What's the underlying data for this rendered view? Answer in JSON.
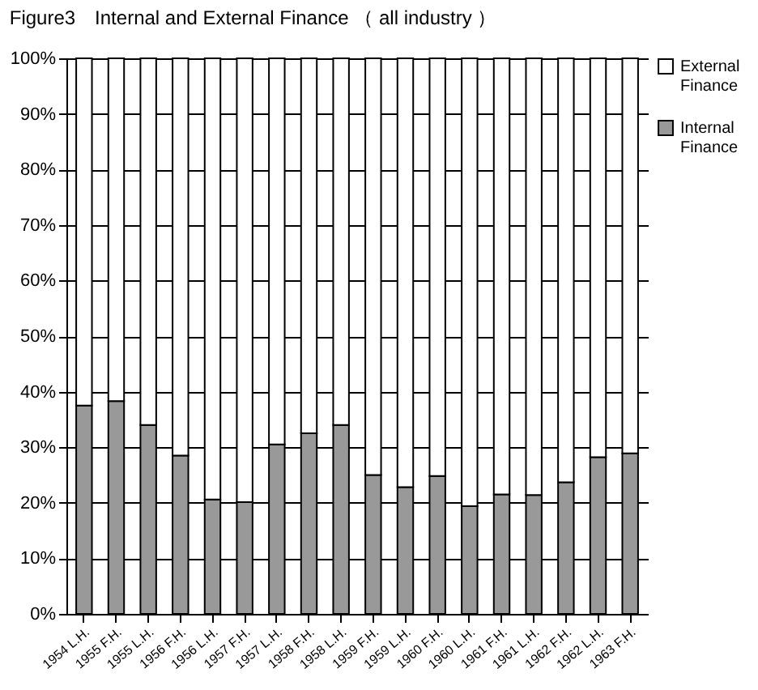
{
  "chart_data": {
    "type": "bar",
    "title": "Figure3　Internal and External Finance （ all industry ）",
    "categories": [
      "1954 L.H.",
      "1955 F.H.",
      "1955 L.H.",
      "1956 F.H.",
      "1956 L.H.",
      "1957 F.H.",
      "1957 L.H.",
      "1958 F.H.",
      "1958 L.H.",
      "1959 F.H.",
      "1959 L.H.",
      "1960 F.H.",
      "1960 L.H.",
      "1961 F.H.",
      "1961 L.H.",
      "1962 F.H.",
      "1962 L.H.",
      "1963 F.H."
    ],
    "stacked": true,
    "series": [
      {
        "name": "Internal Finance",
        "color": "#999999",
        "values": [
          37.5,
          38.3,
          34,
          28.5,
          20.6,
          20.1,
          30.5,
          32.5,
          34,
          25,
          22.8,
          24.8,
          19.4,
          21.5,
          21.4,
          23.7,
          28.2,
          28.9
        ]
      },
      {
        "name": "External Finance",
        "color": "#ffffff",
        "values": [
          62.5,
          61.7,
          66,
          71.5,
          79.4,
          79.9,
          69.5,
          67.5,
          66,
          75,
          77.2,
          75.2,
          80.6,
          78.5,
          78.6,
          76.3,
          71.8,
          71.1
        ]
      }
    ],
    "ylim": [
      0,
      100
    ],
    "yticks": [
      {
        "value": 0,
        "label": "0%"
      },
      {
        "value": 10,
        "label": "10%"
      },
      {
        "value": 20,
        "label": "20%"
      },
      {
        "value": 30,
        "label": "30%"
      },
      {
        "value": 40,
        "label": "40%"
      },
      {
        "value": 50,
        "label": "50%"
      },
      {
        "value": 60,
        "label": "60%"
      },
      {
        "value": 70,
        "label": "70%"
      },
      {
        "value": 80,
        "label": "80%"
      },
      {
        "value": 90,
        "label": "90%"
      },
      {
        "value": 100,
        "label": "100%"
      }
    ],
    "grid": "y",
    "legend": "right"
  }
}
